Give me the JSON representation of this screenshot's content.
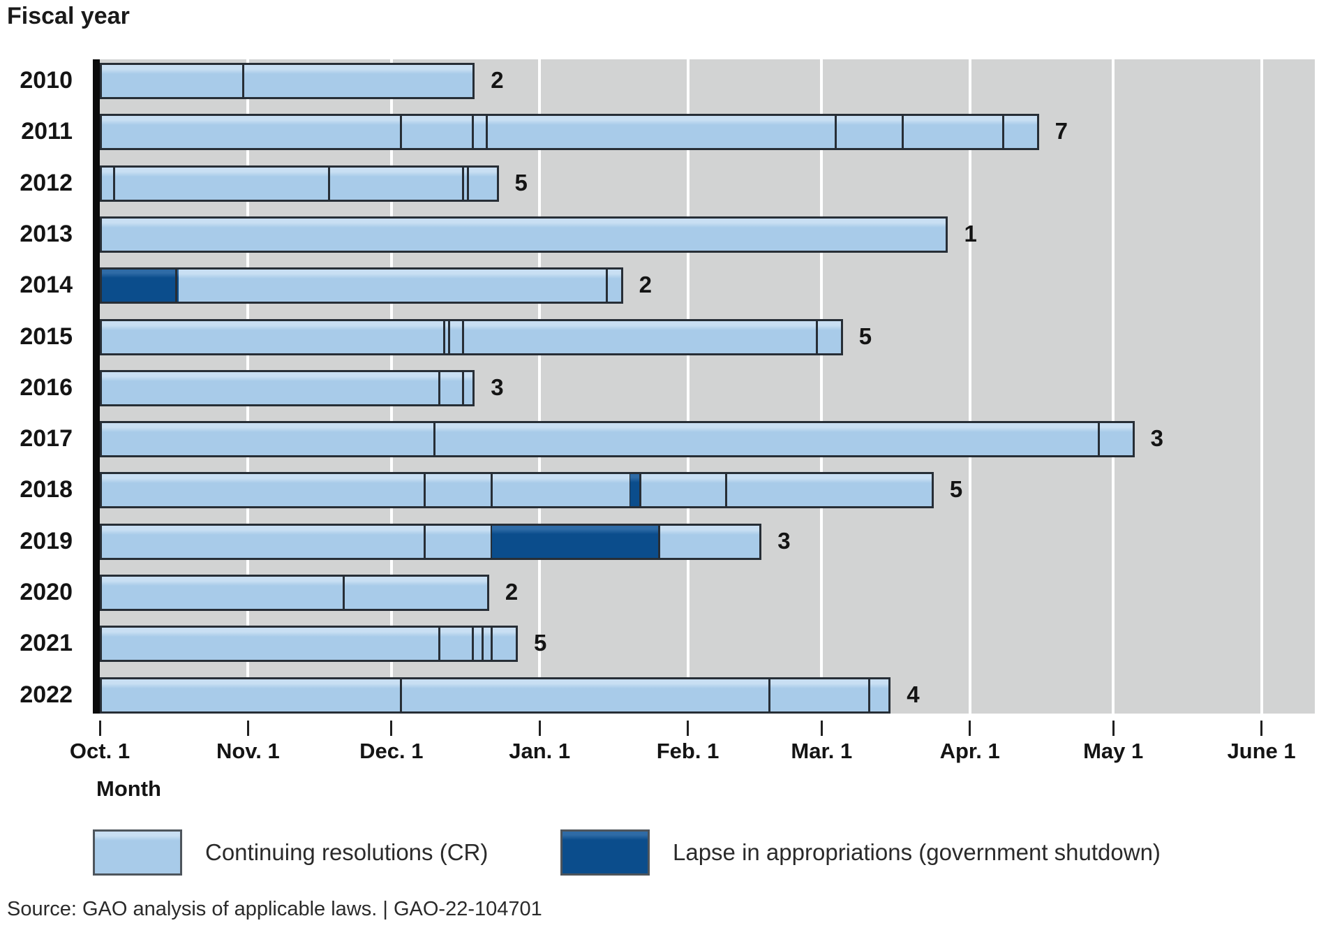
{
  "title": "Fiscal year",
  "x_axis": {
    "label": "Month",
    "ticks": [
      {
        "label": "Oct. 1",
        "day": 0
      },
      {
        "label": "Nov. 1",
        "day": 31
      },
      {
        "label": "Dec. 1",
        "day": 61
      },
      {
        "label": "Jan. 1",
        "day": 92
      },
      {
        "label": "Feb. 1",
        "day": 123
      },
      {
        "label": "Mar. 1",
        "day": 151
      },
      {
        "label": "Apr. 1",
        "day": 182
      },
      {
        "label": "May 1",
        "day": 212
      },
      {
        "label": "June 1",
        "day": 243
      }
    ]
  },
  "legend": {
    "cr_label": "Continuing resolutions (CR)",
    "lapse_label": "Lapse in appropriations (government shutdown)"
  },
  "source": "Source: GAO analysis of applicable laws.  |  GAO-22-104701",
  "colors": {
    "cr": "#a8cbe9",
    "cr_highlight": "#c9dff3",
    "lapse": "#0b4d8c",
    "lapse_highlight": "#2f6ba6",
    "plot_background": "#d2d3d3",
    "gridline": "#ffffff",
    "bar_border": "#272e36",
    "axis_line": "#0b0b0b",
    "text": "#141414"
  },
  "chart_data": {
    "type": "bar",
    "orientation": "horizontal-timeline",
    "title": "Fiscal year",
    "xlabel": "Month",
    "x_unit": "days since Oct. 1",
    "x_domain_days": [
      0,
      243
    ],
    "legend_position": "bottom",
    "grid": true,
    "rows": [
      {
        "year": "2010",
        "cr_count": 2,
        "segments": [
          {
            "type": "cr",
            "start": 0,
            "end": 30
          },
          {
            "type": "cr",
            "start": 30,
            "end": 78
          }
        ]
      },
      {
        "year": "2011",
        "cr_count": 7,
        "segments": [
          {
            "type": "cr",
            "start": 0,
            "end": 63
          },
          {
            "type": "cr",
            "start": 63,
            "end": 78
          },
          {
            "type": "cr",
            "start": 78,
            "end": 81
          },
          {
            "type": "cr",
            "start": 81,
            "end": 154
          },
          {
            "type": "cr",
            "start": 154,
            "end": 168
          },
          {
            "type": "cr",
            "start": 168,
            "end": 189
          },
          {
            "type": "cr",
            "start": 189,
            "end": 196
          }
        ]
      },
      {
        "year": "2012",
        "cr_count": 5,
        "segments": [
          {
            "type": "cr",
            "start": 0,
            "end": 3
          },
          {
            "type": "cr",
            "start": 3,
            "end": 48
          },
          {
            "type": "cr",
            "start": 48,
            "end": 76
          },
          {
            "type": "cr",
            "start": 76,
            "end": 77
          },
          {
            "type": "cr",
            "start": 77,
            "end": 83
          }
        ]
      },
      {
        "year": "2013",
        "cr_count": 1,
        "segments": [
          {
            "type": "cr",
            "start": 0,
            "end": 177
          }
        ]
      },
      {
        "year": "2014",
        "cr_count": 2,
        "segments": [
          {
            "type": "lapse",
            "start": 0,
            "end": 16
          },
          {
            "type": "cr",
            "start": 16,
            "end": 106
          },
          {
            "type": "cr",
            "start": 106,
            "end": 109
          }
        ]
      },
      {
        "year": "2015",
        "cr_count": 5,
        "segments": [
          {
            "type": "cr",
            "start": 0,
            "end": 72
          },
          {
            "type": "cr",
            "start": 72,
            "end": 73
          },
          {
            "type": "cr",
            "start": 73,
            "end": 76
          },
          {
            "type": "cr",
            "start": 76,
            "end": 150
          },
          {
            "type": "cr",
            "start": 150,
            "end": 155
          }
        ]
      },
      {
        "year": "2016",
        "cr_count": 3,
        "segments": [
          {
            "type": "cr",
            "start": 0,
            "end": 71
          },
          {
            "type": "cr",
            "start": 71,
            "end": 76
          },
          {
            "type": "cr",
            "start": 76,
            "end": 78
          }
        ]
      },
      {
        "year": "2017",
        "cr_count": 3,
        "segments": [
          {
            "type": "cr",
            "start": 0,
            "end": 70
          },
          {
            "type": "cr",
            "start": 70,
            "end": 209
          },
          {
            "type": "cr",
            "start": 209,
            "end": 216
          }
        ]
      },
      {
        "year": "2018",
        "cr_count": 5,
        "segments": [
          {
            "type": "cr",
            "start": 0,
            "end": 68
          },
          {
            "type": "cr",
            "start": 68,
            "end": 82
          },
          {
            "type": "cr",
            "start": 82,
            "end": 111
          },
          {
            "type": "lapse",
            "start": 111,
            "end": 113
          },
          {
            "type": "cr",
            "start": 113,
            "end": 131
          },
          {
            "type": "cr",
            "start": 131,
            "end": 174
          }
        ]
      },
      {
        "year": "2019",
        "cr_count": 3,
        "segments": [
          {
            "type": "cr",
            "start": 0,
            "end": 68
          },
          {
            "type": "cr",
            "start": 68,
            "end": 82
          },
          {
            "type": "lapse",
            "start": 82,
            "end": 117
          },
          {
            "type": "cr",
            "start": 117,
            "end": 138
          }
        ]
      },
      {
        "year": "2020",
        "cr_count": 2,
        "segments": [
          {
            "type": "cr",
            "start": 0,
            "end": 51
          },
          {
            "type": "cr",
            "start": 51,
            "end": 81
          }
        ]
      },
      {
        "year": "2021",
        "cr_count": 5,
        "segments": [
          {
            "type": "cr",
            "start": 0,
            "end": 71
          },
          {
            "type": "cr",
            "start": 71,
            "end": 78
          },
          {
            "type": "cr",
            "start": 78,
            "end": 80
          },
          {
            "type": "cr",
            "start": 80,
            "end": 82
          },
          {
            "type": "cr",
            "start": 82,
            "end": 87
          }
        ]
      },
      {
        "year": "2022",
        "cr_count": 4,
        "segments": [
          {
            "type": "cr",
            "start": 0,
            "end": 63
          },
          {
            "type": "cr",
            "start": 63,
            "end": 140
          },
          {
            "type": "cr",
            "start": 140,
            "end": 161
          },
          {
            "type": "cr",
            "start": 161,
            "end": 165
          }
        ]
      }
    ]
  }
}
